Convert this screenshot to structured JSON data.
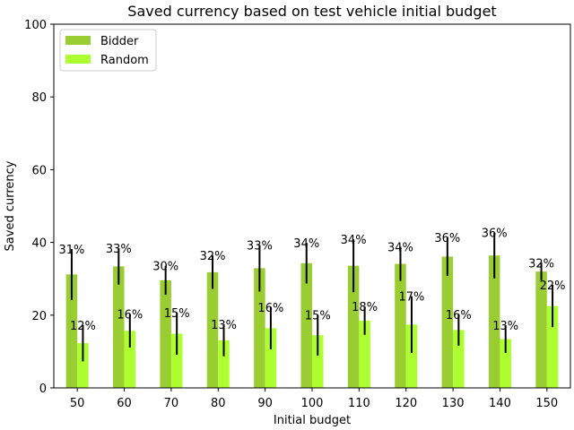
{
  "chart_data": {
    "type": "bar",
    "title": "Saved currency based on test vehicle initial budget",
    "xlabel": "Initial budget",
    "ylabel": "Saved currency",
    "ylim": [
      0,
      100
    ],
    "yticks": [
      "0",
      "20",
      "40",
      "60",
      "80",
      "100"
    ],
    "categories": [
      "50",
      "60",
      "70",
      "80",
      "90",
      "100",
      "110",
      "120",
      "130",
      "140",
      "150"
    ],
    "legend_position": "top-left",
    "grid": false,
    "series": [
      {
        "name": "Bidder",
        "color": "#9acd32",
        "values": [
          31.2,
          33.4,
          29.6,
          31.8,
          32.9,
          34.3,
          33.6,
          34.1,
          36.1,
          36.4,
          32.0
        ],
        "errors": [
          7.0,
          5.0,
          4.0,
          4.6,
          6.4,
          5.6,
          7.3,
          4.7,
          5.3,
          6.3,
          2.4
        ],
        "labels": [
          "31%",
          "33%",
          "30%",
          "32%",
          "33%",
          "34%",
          "34%",
          "34%",
          "36%",
          "36%",
          "32%"
        ]
      },
      {
        "name": "Random",
        "color": "#adff2f",
        "values": [
          12.3,
          15.7,
          14.9,
          13.1,
          16.4,
          14.5,
          18.5,
          17.4,
          15.9,
          13.4,
          22.5
        ],
        "errors": [
          5.0,
          4.6,
          5.8,
          4.4,
          5.8,
          5.6,
          3.9,
          7.8,
          4.3,
          3.8,
          5.8
        ],
        "labels": [
          "12%",
          "16%",
          "15%",
          "13%",
          "16%",
          "15%",
          "18%",
          "17%",
          "16%",
          "13%",
          "22%"
        ]
      }
    ]
  }
}
